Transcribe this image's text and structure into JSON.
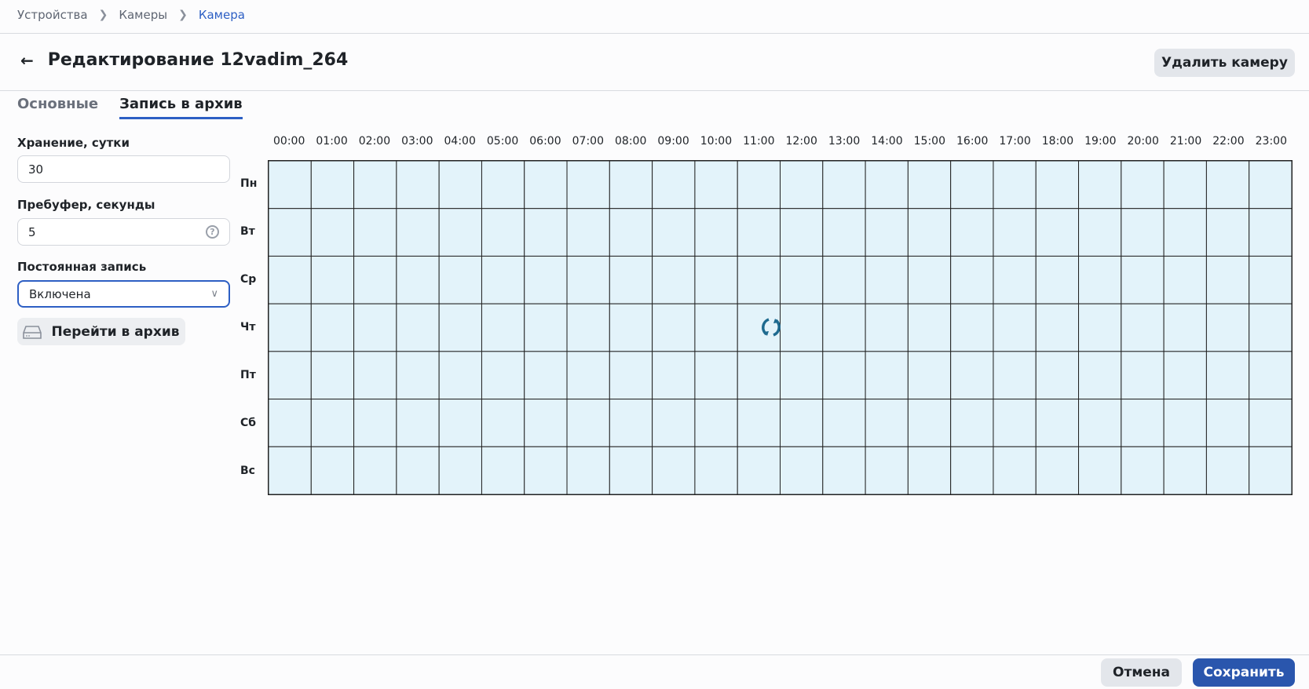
{
  "breadcrumb": [
    "Устройства",
    "Камеры",
    "Камера"
  ],
  "header": {
    "title": "Редактирование 12vadim_264",
    "delete_button": "Удалить камеру"
  },
  "tabs": [
    {
      "label": "Основные",
      "active": false
    },
    {
      "label": "Запись в архив",
      "active": true
    }
  ],
  "form": {
    "storage": {
      "label": "Хранение, сутки",
      "value": "30"
    },
    "prebuffer": {
      "label": "Пребуфер, секунды",
      "value": "5"
    },
    "continuous": {
      "label": "Постоянная запись",
      "value": "Включена"
    },
    "archive_button": "Перейти в архив"
  },
  "schedule": {
    "hours": [
      "00:00",
      "01:00",
      "02:00",
      "03:00",
      "04:00",
      "05:00",
      "06:00",
      "07:00",
      "08:00",
      "09:00",
      "10:00",
      "11:00",
      "12:00",
      "13:00",
      "14:00",
      "15:00",
      "16:00",
      "17:00",
      "18:00",
      "19:00",
      "20:00",
      "21:00",
      "22:00",
      "23:00"
    ],
    "days": [
      "Пн",
      "Вт",
      "Ср",
      "Чт",
      "Пт",
      "Сб",
      "Вс"
    ],
    "cell_color": "#e3f3fa",
    "loading": true
  },
  "footer": {
    "cancel": "Отмена",
    "save": "Сохранить"
  },
  "colors": {
    "accent": "#2d5fc4",
    "primary_button": "#2a56ad",
    "spinner": "#1e6a8f"
  }
}
